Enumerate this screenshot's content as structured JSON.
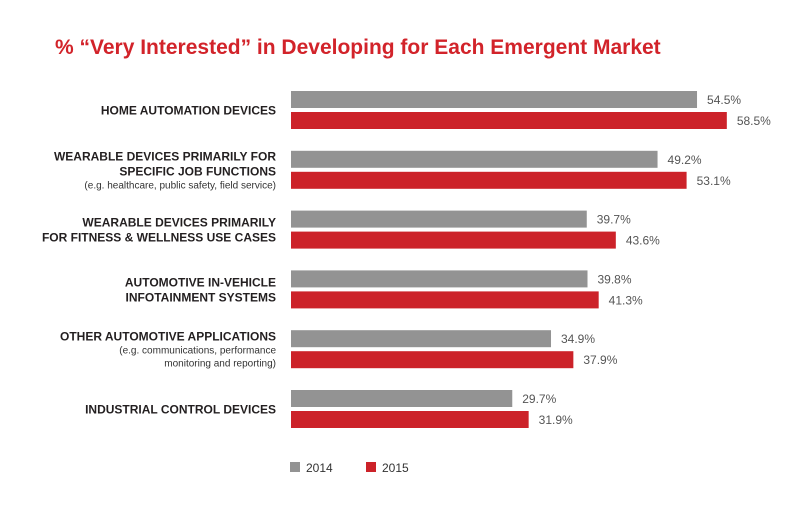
{
  "chart_data": {
    "type": "bar",
    "orientation": "horizontal",
    "title": "% “Very Interested” in Developing for Each Emergent Market",
    "categories": [
      {
        "lines": [
          "HOME AUTOMATION DEVICES"
        ],
        "sub": []
      },
      {
        "lines": [
          "WEARABLE DEVICES PRIMARILY FOR",
          "SPECIFIC JOB FUNCTIONS"
        ],
        "sub": [
          "(e.g. healthcare, public safety, field service)"
        ]
      },
      {
        "lines": [
          "WEARABLE DEVICES PRIMARILY",
          "FOR FITNESS & WELLNESS USE CASES"
        ],
        "sub": []
      },
      {
        "lines": [
          "AUTOMOTIVE IN-VEHICLE",
          "INFOTAINMENT SYSTEMS"
        ],
        "sub": []
      },
      {
        "lines": [
          "OTHER AUTOMOTIVE APPLICATIONS"
        ],
        "sub": [
          "(e.g. communications, performance",
          "monitoring and reporting)"
        ]
      },
      {
        "lines": [
          "INDUSTRIAL CONTROL DEVICES"
        ],
        "sub": []
      }
    ],
    "series": [
      {
        "name": "2014",
        "color": "#939393",
        "values": [
          54.5,
          49.2,
          39.7,
          39.8,
          34.9,
          29.7
        ],
        "labels": [
          "54.5%",
          "49.2%",
          "39.7%",
          "39.8%",
          "34.9%",
          "29.7%"
        ]
      },
      {
        "name": "2015",
        "color": "#cc2229",
        "values": [
          58.5,
          53.1,
          43.6,
          41.3,
          37.9,
          31.9
        ],
        "labels": [
          "58.5%",
          "53.1%",
          "43.6%",
          "41.3%",
          "37.9%",
          "31.9%"
        ]
      }
    ],
    "xlim": [
      0,
      100
    ],
    "grid": false,
    "legend": "bottom"
  }
}
